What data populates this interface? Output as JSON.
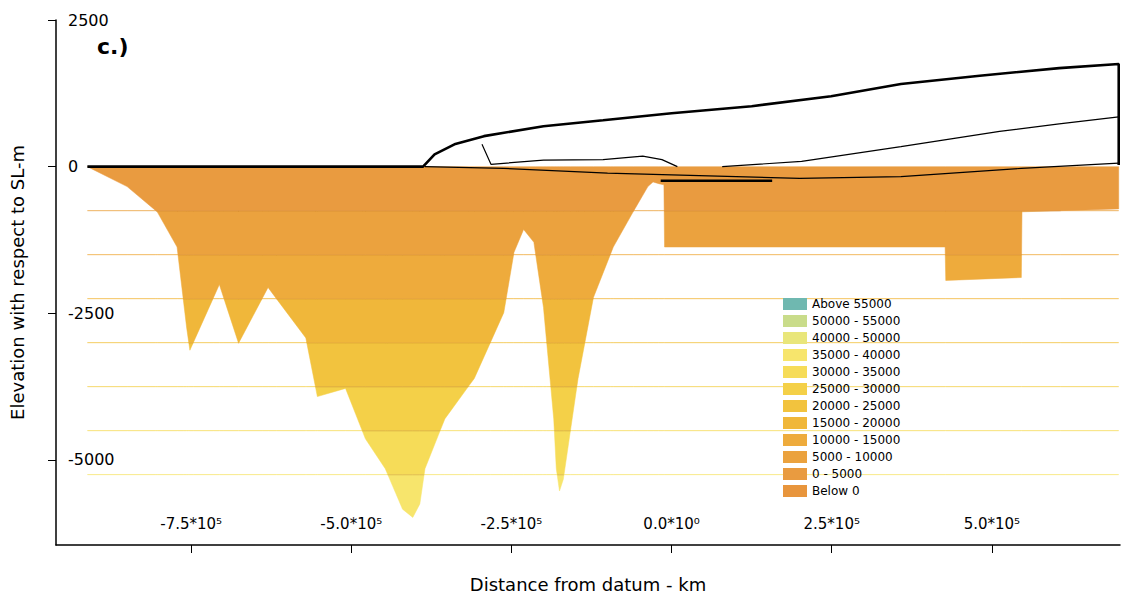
{
  "chart_data": {
    "type": "contour",
    "title": "c.)",
    "xlabel": "Distance from datum - km",
    "ylabel": "Elevation with respect to SL-m",
    "xlim": [
      -961000,
      700000
    ],
    "ylim": [
      -6450,
      2500
    ],
    "xticks": [
      {
        "value": -750000,
        "label": "-7.5*10⁵"
      },
      {
        "value": -500000,
        "label": "-5.0*10⁵"
      },
      {
        "value": -250000,
        "label": "-2.5*10⁵"
      },
      {
        "value": 0,
        "label": "0.0*10⁰"
      },
      {
        "value": 250000,
        "label": "2.5*10⁵"
      },
      {
        "value": 500000,
        "label": "5.0*10⁵"
      }
    ],
    "yticks": [
      -5000,
      -2500,
      0,
      2500
    ],
    "grid": false,
    "legend": "lower right",
    "classes": [
      {
        "label": "Above 55000",
        "color": "#6fb8b0"
      },
      {
        "label": "50000 - 55000",
        "color": "#c9dc8a"
      },
      {
        "label": "40000 - 50000",
        "color": "#e9e67a"
      },
      {
        "label": "35000 - 40000",
        "color": "#f7e56c"
      },
      {
        "label": "30000 - 35000",
        "color": "#f6dc58"
      },
      {
        "label": "25000 - 30000",
        "color": "#f4d048"
      },
      {
        "label": "20000 - 25000",
        "color": "#f2c33e"
      },
      {
        "label": "15000 - 20000",
        "color": "#f0b73a"
      },
      {
        "label": "10000 - 15000",
        "color": "#eeab3c"
      },
      {
        "label": "5000 - 10000",
        "color": "#eba23e"
      },
      {
        "label": "0 - 5000",
        "color": "#e99b40"
      },
      {
        "label": "Below 0",
        "color": "#e8953c"
      }
    ],
    "bands": [
      {
        "top": 0,
        "bottom": -750,
        "class": "0 - 5000"
      },
      {
        "top": -750,
        "bottom": -1500,
        "class": "5000 - 10000"
      },
      {
        "top": -1500,
        "bottom": -2250,
        "class": "10000 - 15000"
      },
      {
        "top": -2250,
        "bottom": -3000,
        "class": "15000 - 20000"
      },
      {
        "top": -3000,
        "bottom": -3750,
        "class": "20000 - 25000"
      },
      {
        "top": -3750,
        "bottom": -4500,
        "class": "25000 - 30000"
      },
      {
        "top": -4500,
        "bottom": -5250,
        "class": "30000 - 35000"
      },
      {
        "top": -5250,
        "bottom": -6450,
        "class": "35000 - 40000"
      }
    ],
    "basement": {
      "x": [
        -912000,
        -850000,
        -803000,
        -772000,
        -757000,
        -752000,
        -706000,
        -676000,
        -630000,
        -571000,
        -553000,
        -509000,
        -478000,
        -447000,
        -420000,
        -404000,
        -393000,
        -385000,
        -354000,
        -308000,
        -262000,
        -246000,
        -231000,
        -215000,
        -200000,
        -184000,
        -180000,
        -175000,
        -169000,
        -146000,
        -122000,
        -91000,
        -60000,
        -37000,
        -29000,
        -20000,
        -12000,
        -11000,
        427000,
        428000,
        546000,
        547000,
        698000
      ],
      "y": [
        0,
        -340,
        -770,
        -1370,
        -2750,
        -3130,
        -2010,
        -3010,
        -2060,
        -2920,
        -3920,
        -3780,
        -4640,
        -5150,
        -5840,
        -5980,
        -5750,
        -5150,
        -4300,
        -3610,
        -2490,
        -1460,
        -1070,
        -1290,
        -2400,
        -4300,
        -5150,
        -5530,
        -5330,
        -3610,
        -2230,
        -1370,
        -770,
        -340,
        -260,
        -290,
        -310,
        -1370,
        -1370,
        -1940,
        -1890,
        -770,
        -720
      ]
    },
    "series": [
      {
        "type": "line",
        "line_style": "thick",
        "color": "#000000",
        "x": [
          -912000,
          -388000,
          -370000,
          -339000,
          -293000,
          -200000,
          -107000,
          0,
          125000,
          249000,
          358000,
          481000,
          605000,
          698000,
          698000
        ],
        "values": [
          0,
          0,
          210,
          380,
          520,
          690,
          790,
          910,
          1030,
          1200,
          1410,
          1550,
          1680,
          1750,
          30
        ]
      },
      {
        "type": "line",
        "line_style": "thin",
        "color": "#000000",
        "x": [
          -385000,
          -262000,
          -100000,
          0,
          200000,
          358000,
          546000,
          698000
        ],
        "values": [
          0,
          -30,
          -110,
          -140,
          -200,
          -170,
          -30,
          60
        ]
      },
      {
        "type": "line",
        "line_style": "thin",
        "color": "#000000",
        "x": [
          -296000,
          -282000,
          -200000,
          -107000,
          -45000,
          -15000,
          9000
        ],
        "values": [
          380,
          40,
          110,
          120,
          180,
          120,
          0
        ]
      },
      {
        "type": "line",
        "line_style": "thin",
        "color": "#000000",
        "x": [
          79000,
          203000,
          358000,
          512000,
          605000,
          698000
        ],
        "values": [
          0,
          90,
          340,
          600,
          730,
          850
        ]
      },
      {
        "type": "line",
        "line_style": "thick",
        "color": "#000000",
        "x": [
          -17000,
          157000
        ],
        "values": [
          -240,
          -240
        ]
      }
    ]
  }
}
